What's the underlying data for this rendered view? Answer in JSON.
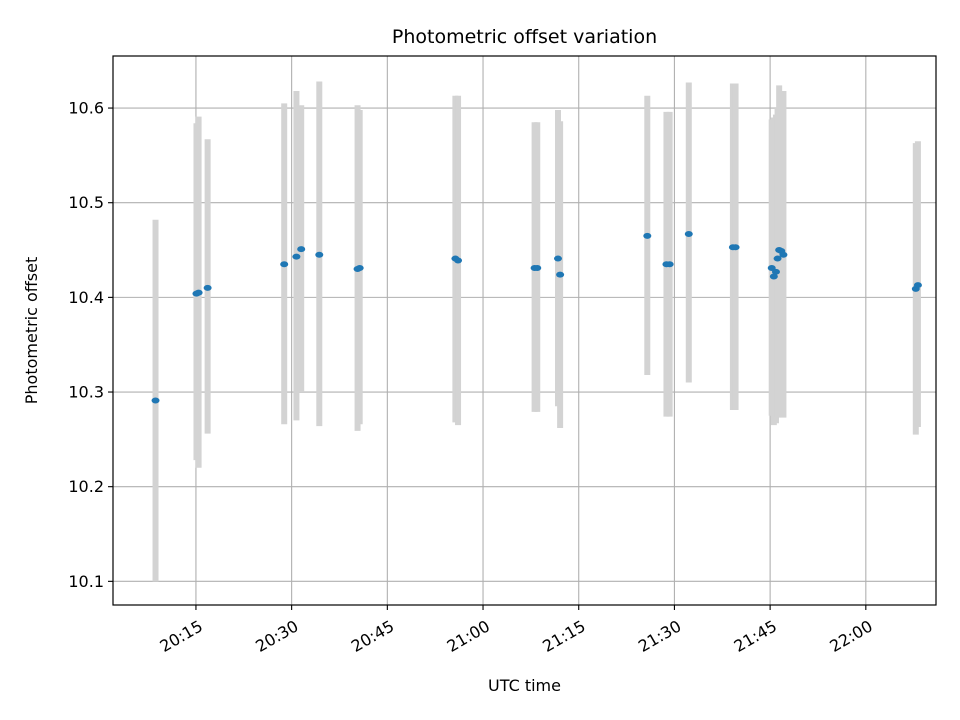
{
  "chart_data": {
    "type": "scatter",
    "title": "Photometric offset variation",
    "xlabel": "UTC time",
    "ylabel": "Photometric offset",
    "x_unit": "HH:MM",
    "xlim": [
      "20:02",
      "22:11"
    ],
    "ylim": [
      10.075,
      10.655
    ],
    "x_ticks": [
      "20:15",
      "20:30",
      "20:45",
      "21:00",
      "21:15",
      "21:30",
      "21:45",
      "22:00"
    ],
    "y_ticks": [
      10.1,
      10.2,
      10.3,
      10.4,
      10.5,
      10.6
    ],
    "y_tick_labels": [
      "10.1",
      "10.2",
      "10.3",
      "10.4",
      "10.5",
      "10.6"
    ],
    "grid": true,
    "colors": {
      "points": "#1f77b4",
      "errorbars": "#d3d3d3",
      "grid": "#b0b0b0"
    },
    "series": [
      {
        "points": [
          {
            "x": "20:08:40",
            "y": 10.291,
            "lo": 10.1,
            "hi": 10.482
          },
          {
            "x": "20:15:05",
            "y": 10.404,
            "lo": 10.228,
            "hi": 10.584
          },
          {
            "x": "20:15:25",
            "y": 10.405,
            "lo": 10.22,
            "hi": 10.591
          },
          {
            "x": "20:16:50",
            "y": 10.41,
            "lo": 10.256,
            "hi": 10.567
          },
          {
            "x": "20:28:50",
            "y": 10.435,
            "lo": 10.266,
            "hi": 10.605
          },
          {
            "x": "20:30:45",
            "y": 10.443,
            "lo": 10.27,
            "hi": 10.618
          },
          {
            "x": "20:31:30",
            "y": 10.451,
            "lo": 10.3,
            "hi": 10.603
          },
          {
            "x": "20:34:20",
            "y": 10.445,
            "lo": 10.264,
            "hi": 10.628
          },
          {
            "x": "20:40:20",
            "y": 10.43,
            "lo": 10.259,
            "hi": 10.603
          },
          {
            "x": "20:40:40",
            "y": 10.431,
            "lo": 10.266,
            "hi": 10.598
          },
          {
            "x": "20:55:40",
            "y": 10.441,
            "lo": 10.268,
            "hi": 10.613
          },
          {
            "x": "20:56:05",
            "y": 10.439,
            "lo": 10.265,
            "hi": 10.613
          },
          {
            "x": "21:08:05",
            "y": 10.431,
            "lo": 10.279,
            "hi": 10.585
          },
          {
            "x": "21:08:30",
            "y": 10.431,
            "lo": 10.279,
            "hi": 10.585
          },
          {
            "x": "21:11:45",
            "y": 10.441,
            "lo": 10.285,
            "hi": 10.598
          },
          {
            "x": "21:12:05",
            "y": 10.424,
            "lo": 10.262,
            "hi": 10.586
          },
          {
            "x": "21:25:45",
            "y": 10.465,
            "lo": 10.318,
            "hi": 10.613
          },
          {
            "x": "21:28:45",
            "y": 10.435,
            "lo": 10.274,
            "hi": 10.596
          },
          {
            "x": "21:29:15",
            "y": 10.435,
            "lo": 10.274,
            "hi": 10.596
          },
          {
            "x": "21:32:15",
            "y": 10.467,
            "lo": 10.31,
            "hi": 10.627
          },
          {
            "x": "21:39:10",
            "y": 10.453,
            "lo": 10.281,
            "hi": 10.626
          },
          {
            "x": "21:39:35",
            "y": 10.453,
            "lo": 10.281,
            "hi": 10.626
          },
          {
            "x": "21:45:15",
            "y": 10.431,
            "lo": 10.275,
            "hi": 10.588
          },
          {
            "x": "21:45:35",
            "y": 10.422,
            "lo": 10.265,
            "hi": 10.59
          },
          {
            "x": "21:45:55",
            "y": 10.427,
            "lo": 10.267,
            "hi": 10.593
          },
          {
            "x": "21:46:10",
            "y": 10.441,
            "lo": 10.273,
            "hi": 10.6
          },
          {
            "x": "21:46:25",
            "y": 10.45,
            "lo": 10.276,
            "hi": 10.624
          },
          {
            "x": "21:46:45",
            "y": 10.449,
            "lo": 10.276,
            "hi": 10.615
          },
          {
            "x": "21:47:05",
            "y": 10.445,
            "lo": 10.273,
            "hi": 10.618
          },
          {
            "x": "22:07:50",
            "y": 10.409,
            "lo": 10.255,
            "hi": 10.563
          },
          {
            "x": "22:08:10",
            "y": 10.413,
            "lo": 10.263,
            "hi": 10.565
          }
        ]
      }
    ]
  }
}
